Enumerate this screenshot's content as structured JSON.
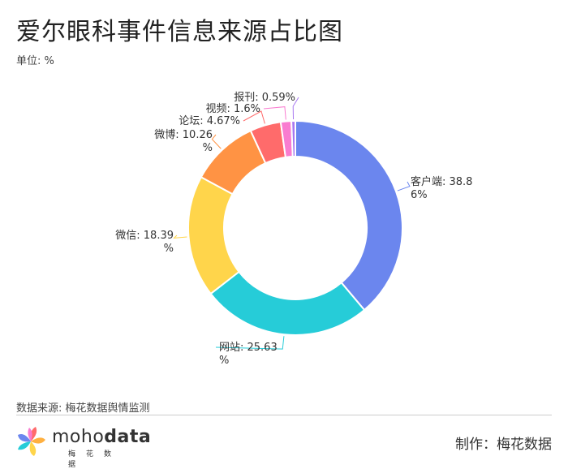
{
  "title": "爱尔眼科事件信息来源占比图",
  "unit_label": "单位: %",
  "source_label": "数据来源: 梅花数据舆情监测",
  "credit_label": "制作：梅花数据",
  "logo": {
    "word_light": "moho",
    "word_bold": "data",
    "sub": "梅花数据"
  },
  "chart_data": {
    "type": "pie",
    "donut": true,
    "title": "爱尔眼科事件信息来源占比图",
    "unit": "%",
    "slices": [
      {
        "label": "客户端",
        "value": 38.86,
        "color": "#6b86ee",
        "text_lines": [
          "客户端: 38.8",
          "6%"
        ]
      },
      {
        "label": "网站",
        "value": 25.63,
        "color": "#26ccd8",
        "text_lines": [
          "网站: 25.63",
          "%"
        ]
      },
      {
        "label": "微信",
        "value": 18.39,
        "color": "#ffd54b",
        "text_lines": [
          "微信: 18.39",
          "%"
        ]
      },
      {
        "label": "微博",
        "value": 10.26,
        "color": "#ff9344",
        "text_lines": [
          "微博: 10.26",
          "%"
        ]
      },
      {
        "label": "论坛",
        "value": 4.67,
        "color": "#ff6b6b",
        "text_lines": [
          "论坛: 4.67%"
        ]
      },
      {
        "label": "视频",
        "value": 1.6,
        "color": "#f97cd0",
        "text_lines": [
          "视频: 1.6%"
        ]
      },
      {
        "label": "报刊",
        "value": 0.59,
        "color": "#a878f0",
        "text_lines": [
          "报刊: 0.59%"
        ]
      }
    ]
  }
}
